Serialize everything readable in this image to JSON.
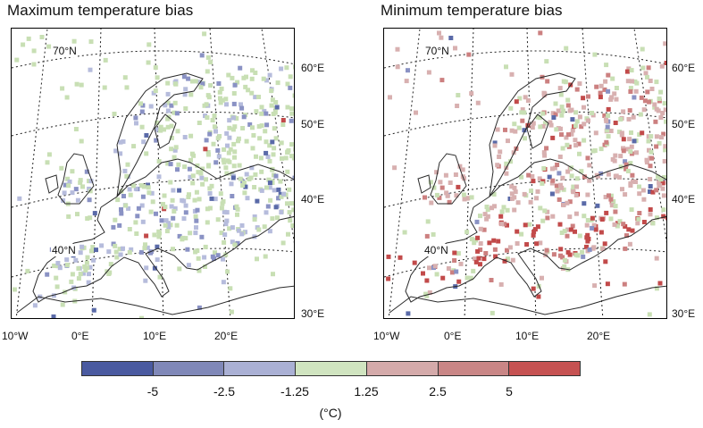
{
  "panels": [
    {
      "title": "Maximum temperature bias",
      "lat_labels": [
        "70°N",
        "40°N"
      ],
      "lon_right_labels": [
        "60°E",
        "50°E",
        "40°E",
        "30°E"
      ],
      "lon_bottom_labels": [
        "10°W",
        "0°E",
        "10°E",
        "20°E"
      ],
      "dominant_bias": "cold"
    },
    {
      "title": "Minimum temperature bias",
      "lat_labels": [
        "70°N",
        "40°N"
      ],
      "lon_right_labels": [
        "60°E",
        "50°E",
        "40°E",
        "30°E"
      ],
      "lon_bottom_labels": [
        "10°W",
        "0°E",
        "10°E",
        "20°E"
      ],
      "dominant_bias": "warm"
    }
  ],
  "colorbar": {
    "colors": [
      "#4a5aa0",
      "#8088b8",
      "#aab0d4",
      "#d0e4c0",
      "#d4aaaa",
      "#c98686",
      "#c65252"
    ],
    "tick_labels": [
      "-5",
      "-2.5",
      "-1.25",
      "1.25",
      "2.5",
      "5"
    ],
    "unit": "(°C)"
  },
  "station_colors": {
    "cold_strong": "#5a6aa8",
    "cold": "#8a92c4",
    "cold_light": "#b6bcdc",
    "neutral": "#c8dfb4",
    "warm_light": "#d8b0b0",
    "warm": "#cc8080",
    "warm_strong": "#c24a4a"
  }
}
